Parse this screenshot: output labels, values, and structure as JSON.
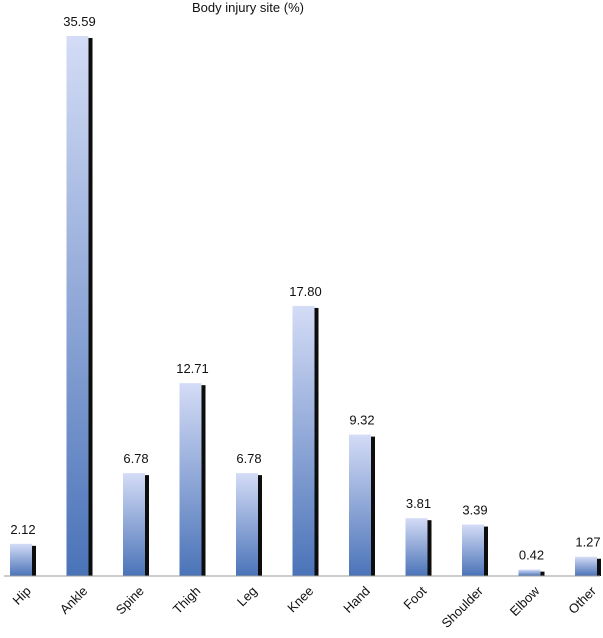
{
  "chart_data": {
    "type": "bar",
    "title": "Body injury site (%)",
    "categories": [
      "Hip",
      "Ankle",
      "Spine",
      "Thigh",
      "Leg",
      "Knee",
      "Hand",
      "Foot",
      "Shoulder",
      "Elbow",
      "Other"
    ],
    "values": [
      2.12,
      35.59,
      6.78,
      12.71,
      6.78,
      17.8,
      9.32,
      3.81,
      3.39,
      0.42,
      1.27
    ],
    "value_labels": [
      "2.12",
      "35.59",
      "6.78",
      "12.71",
      "6.78",
      "17.80",
      "9.32",
      "3.81",
      "3.39",
      "0.42",
      "1.27"
    ],
    "xlabel": "",
    "ylabel": "",
    "ylim": [
      0,
      35.59
    ],
    "grid": false,
    "legend": "none",
    "colors": {
      "bar_top": "#d4dcf6",
      "bar_bottom": "#4a73b8",
      "bar_shadow": "#0d0d0d",
      "axis": "#9a9a9a"
    }
  }
}
